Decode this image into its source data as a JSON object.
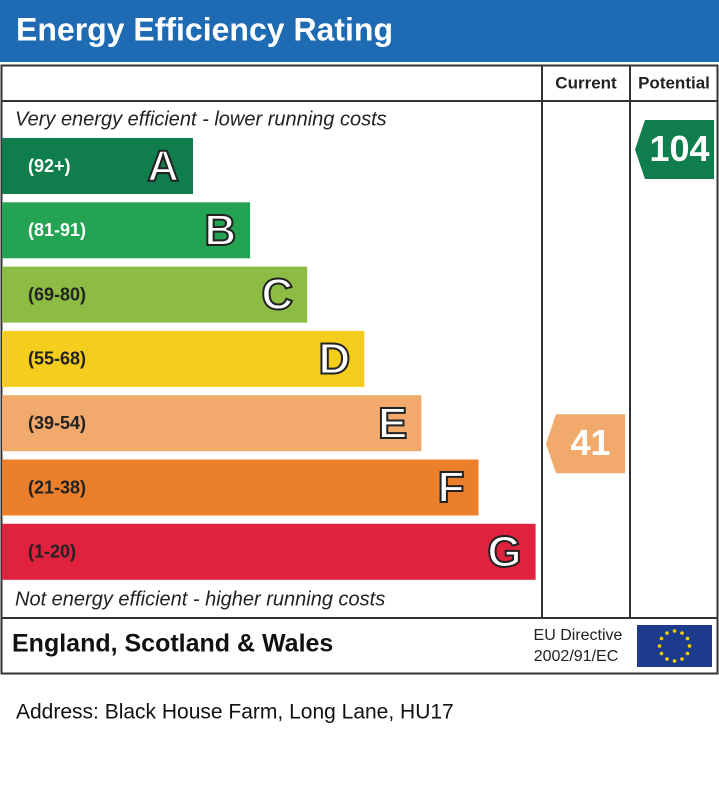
{
  "chart_data": {
    "type": "epc",
    "title": "Energy Efficiency Rating",
    "column_headers": [
      "Current",
      "Potential"
    ],
    "top_note": "Very energy efficient - lower running costs",
    "bottom_note": "Not energy efficient - higher running costs",
    "bands": [
      {
        "range": "(92+)",
        "letter": "A",
        "color": "#0f7d4c"
      },
      {
        "range": "(81-91)",
        "letter": "B",
        "color": "#24a353"
      },
      {
        "range": "(69-80)",
        "letter": "C",
        "color": "#8dbc44"
      },
      {
        "range": "(55-68)",
        "letter": "D",
        "color": "#f5cd1d"
      },
      {
        "range": "(39-54)",
        "letter": "E",
        "color": "#f2aa6c"
      },
      {
        "range": "(21-38)",
        "letter": "F",
        "color": "#ec7f2b"
      },
      {
        "range": "(1-20)",
        "letter": "G",
        "color": "#e0223f"
      }
    ],
    "current": 41,
    "potential": 104,
    "region": "England, Scotland & Wales",
    "directive": [
      "EU Directive",
      "2002/91/EC"
    ],
    "address": "Address: Black House Farm, Long Lane, HU17"
  }
}
